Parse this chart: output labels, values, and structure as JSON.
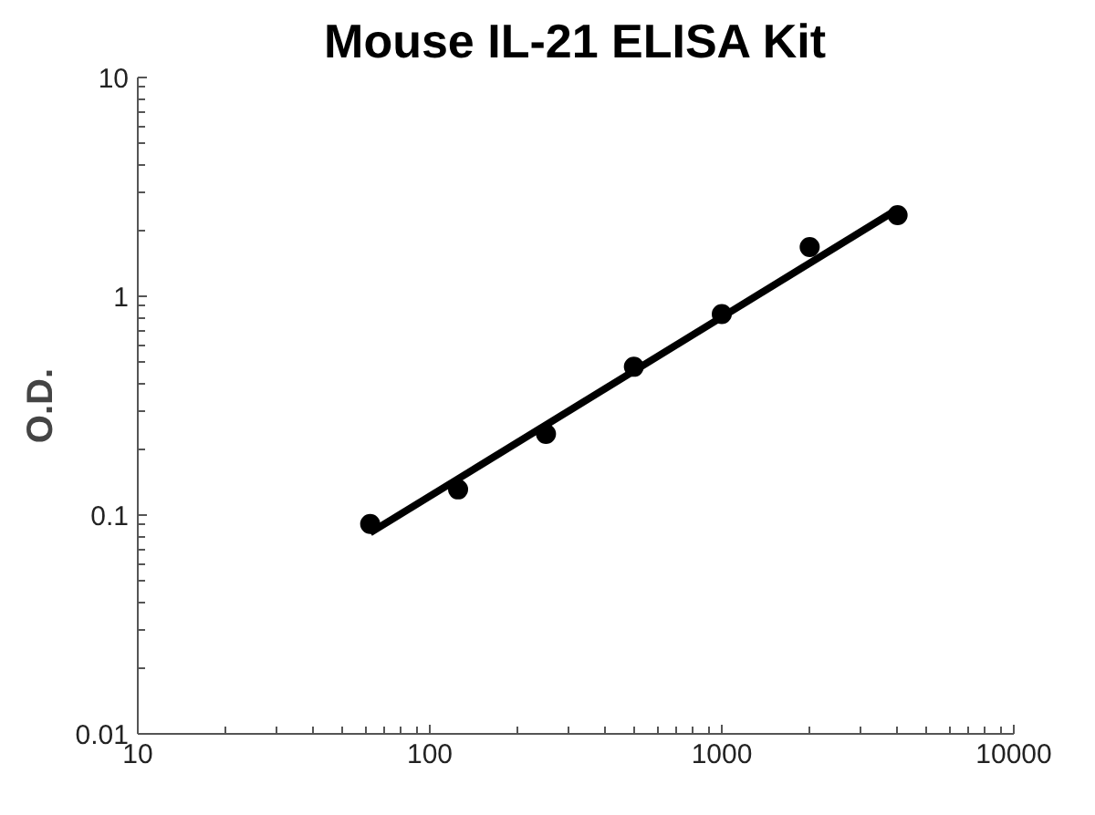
{
  "chart_data": {
    "type": "scatter",
    "title": "Mouse IL-21 ELISA Kit",
    "ylabel": "O.D.",
    "log": "xy",
    "grid": false,
    "marker": "circle",
    "xlim": [
      10,
      10000
    ],
    "xticks": [
      10,
      100,
      1000,
      10000
    ],
    "ylim": [
      0.01,
      10
    ],
    "yticks": [
      0.01,
      0.1,
      1,
      10
    ],
    "series": [
      {
        "color": "#000000",
        "x": [
          62.5,
          125,
          250,
          500,
          1000,
          2000,
          4000
        ],
        "values": [
          0.091,
          0.131,
          0.235,
          0.476,
          0.83,
          1.68,
          2.35
        ]
      },
      {
        "type": "line",
        "color": "#000000",
        "line_style": "solid",
        "marker": "none",
        "x": [
          62.5,
          4000
        ],
        "values": [
          0.083,
          2.5
        ]
      }
    ]
  }
}
